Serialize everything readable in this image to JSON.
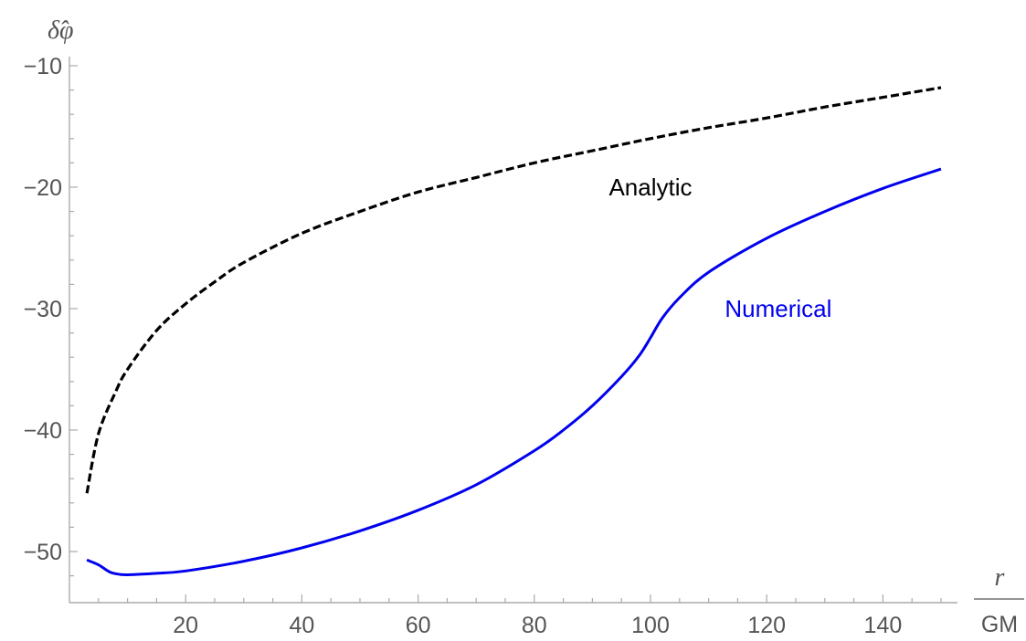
{
  "chart_data": {
    "type": "line",
    "ylabel": "δ̂φ",
    "xlabel": {
      "numerator": "r",
      "denominator": "GM"
    },
    "xlim": [
      0,
      150
    ],
    "ylim": [
      -54.2,
      -9.4
    ],
    "x_ticks": [
      20,
      40,
      60,
      80,
      100,
      120,
      140
    ],
    "y_ticks": [
      -10,
      -20,
      -30,
      -40,
      -50
    ],
    "x_tick_labels": [
      "20",
      "40",
      "60",
      "80",
      "100",
      "120",
      "140"
    ],
    "y_tick_labels": [
      "−10",
      "−20",
      "−30",
      "−40",
      "−50"
    ],
    "grid": false,
    "series": [
      {
        "name": "Analytic",
        "color": "#000000",
        "style": "dashed",
        "label_at": [
          100,
          -20
        ],
        "x": [
          3,
          5,
          8,
          10,
          15,
          20,
          25,
          30,
          40,
          50,
          60,
          70,
          80,
          90,
          100,
          110,
          120,
          130,
          140,
          150
        ],
        "y": [
          -45.2,
          -40.3,
          -36.8,
          -35.0,
          -31.8,
          -29.6,
          -27.8,
          -26.2,
          -23.8,
          -22.0,
          -20.4,
          -19.2,
          -18.0,
          -17.0,
          -16.0,
          -15.1,
          -14.3,
          -13.4,
          -12.6,
          -11.8
        ]
      },
      {
        "name": "Numerical",
        "color": "#0000ee",
        "style": "solid",
        "label_at": [
          122,
          -30
        ],
        "x": [
          3,
          5,
          7,
          9,
          11,
          15,
          20,
          30,
          40,
          50,
          60,
          70,
          80,
          85,
          90,
          95,
          98,
          100,
          102,
          105,
          110,
          120,
          130,
          140,
          150
        ],
        "y": [
          -50.7,
          -51.1,
          -51.7,
          -51.9,
          -51.9,
          -51.8,
          -51.6,
          -50.8,
          -49.7,
          -48.3,
          -46.6,
          -44.5,
          -41.7,
          -40.0,
          -38.0,
          -35.6,
          -33.9,
          -32.4,
          -30.8,
          -29.1,
          -27.0,
          -24.2,
          -22.0,
          -20.1,
          -18.5
        ]
      }
    ]
  }
}
